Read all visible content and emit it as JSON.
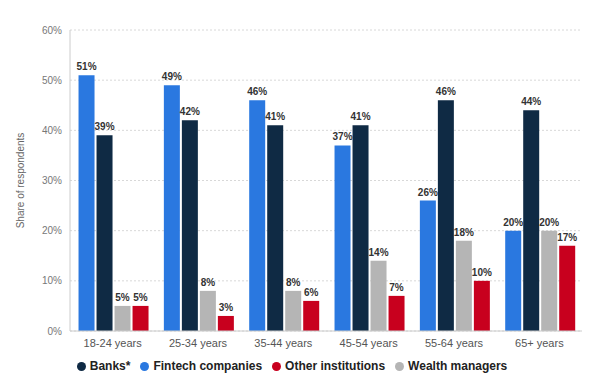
{
  "chart_data": {
    "type": "bar",
    "y_label": "Share of respondents",
    "categories": [
      "18-24 years",
      "25-34 years",
      "35-44 years",
      "45-54 years",
      "55-64 years",
      "65+ years"
    ],
    "series": [
      {
        "name": "Fintech companies",
        "color": "#2a78e0",
        "values": [
          51,
          49,
          46,
          37,
          26,
          20
        ],
        "value_labels": [
          "51%",
          "49%",
          "46%",
          "37%",
          "26%",
          "20%"
        ]
      },
      {
        "name": "Banks*",
        "color": "#0f2a44",
        "values": [
          39,
          42,
          41,
          41,
          46,
          44
        ],
        "value_labels": [
          "39%",
          "42%",
          "41%",
          "41%",
          "46%",
          "44%"
        ]
      },
      {
        "name": "Wealth managers",
        "color": "#b5b5b5",
        "values": [
          5,
          8,
          8,
          14,
          18,
          20
        ],
        "value_labels": [
          "5%",
          "8%",
          "8%",
          "14%",
          "18%",
          "20%"
        ]
      },
      {
        "name": "Other institutions",
        "color": "#c8001e",
        "values": [
          5,
          3,
          6,
          7,
          10,
          17
        ],
        "value_labels": [
          "5%",
          "3%",
          "6%",
          "7%",
          "10%",
          "17%"
        ]
      }
    ],
    "ylim": [
      0,
      60
    ],
    "yticks": [
      {
        "value": 0,
        "label": "0%"
      },
      {
        "value": 10,
        "label": "10%"
      },
      {
        "value": 20,
        "label": "20%"
      },
      {
        "value": 30,
        "label": "30%"
      },
      {
        "value": 40,
        "label": "40%"
      },
      {
        "value": 50,
        "label": "50%"
      },
      {
        "value": 60,
        "label": "60%"
      }
    ],
    "grid": true,
    "legend": "bottom",
    "data_labels": true
  }
}
